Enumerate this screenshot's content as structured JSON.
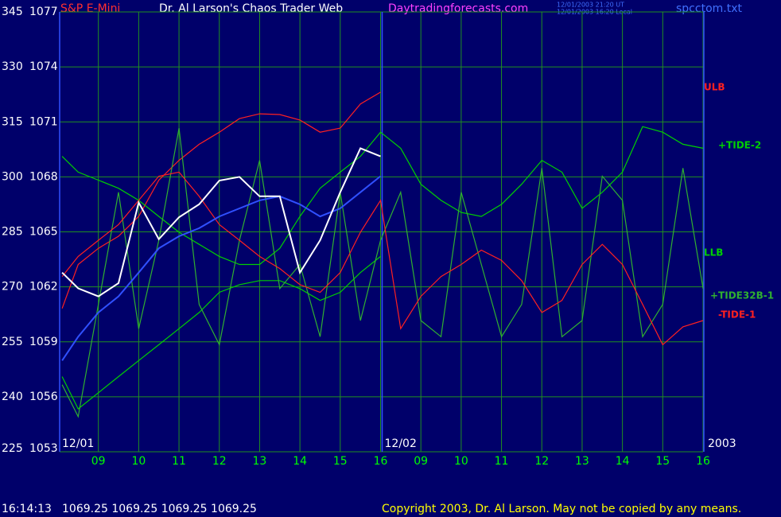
{
  "chart_data": {
    "type": "line",
    "header": {
      "symbol": "S&P E-Mini",
      "title": "Dr. Al Larson's Chaos Trader Web",
      "site": "Daytradingforecasts.com",
      "stamp_ut": "12/01/2003 21:20 UT",
      "stamp_local": "12/01/2003 16:20 Local",
      "file": "spcctom.txt"
    },
    "footer": {
      "time": "16:14:13",
      "quote": "1069.25 1069.25 1069.25 1069.25",
      "copyright": "Copyright 2003, Dr. Al Larson. May not be copied by any means."
    },
    "day_labels": [
      {
        "x": 0,
        "label": "12/01"
      },
      {
        "x": 8,
        "label": "12/02"
      }
    ],
    "year_label": "2003",
    "x": [
      0.1,
      0.5,
      1,
      1.5,
      2,
      2.5,
      3,
      3.5,
      4,
      4.5,
      5,
      5.5,
      6,
      6.5,
      7,
      7.5,
      8,
      8.5,
      9,
      9.5,
      10,
      10.5,
      11,
      11.5,
      12,
      12.5,
      13,
      13.5,
      14,
      14.5,
      15,
      15.5,
      16
    ],
    "xlim": [
      0,
      16
    ],
    "xticks": [
      {
        "value": 1,
        "label": "09"
      },
      {
        "value": 2,
        "label": "10"
      },
      {
        "value": 3,
        "label": "11"
      },
      {
        "value": 4,
        "label": "12"
      },
      {
        "value": 5,
        "label": "13"
      },
      {
        "value": 6,
        "label": "14"
      },
      {
        "value": 7,
        "label": "15"
      },
      {
        "value": 8,
        "label": "16"
      },
      {
        "value": 9,
        "label": "09"
      },
      {
        "value": 10,
        "label": "10"
      },
      {
        "value": 11,
        "label": "11"
      },
      {
        "value": 12,
        "label": "12"
      },
      {
        "value": 13,
        "label": "13"
      },
      {
        "value": 14,
        "label": "14"
      },
      {
        "value": 15,
        "label": "15"
      },
      {
        "value": 16,
        "label": "16"
      }
    ],
    "ylim": [
      225,
      345
    ],
    "yticks": [
      225,
      240,
      255,
      270,
      285,
      300,
      315,
      330,
      345
    ],
    "y2lim": [
      1053,
      1077
    ],
    "y2ticks": [
      1053,
      1056,
      1059,
      1062,
      1065,
      1068,
      1071,
      1074,
      1077
    ],
    "grid": true,
    "series": [
      {
        "name": "ULB",
        "color": "#ff2020",
        "values": [
          264.1,
          276.1,
          280.5,
          283.8,
          289.2,
          299.1,
          304.5,
          308.9,
          312.2,
          315.9,
          317.2,
          317,
          315.5,
          312.2,
          313.3,
          319.9,
          323.1,
          null,
          null,
          null,
          null,
          null,
          null,
          null,
          null,
          null,
          null,
          null,
          null,
          null,
          null,
          null,
          null
        ]
      },
      {
        "name": "+TIDE-2",
        "color": "#00d000",
        "values": [
          305.6,
          301.3,
          299.1,
          296.9,
          293.6,
          289.2,
          284.9,
          281.6,
          278.3,
          276.1,
          276.1,
          280.5,
          289.2,
          296.9,
          301.3,
          305.6,
          312.2,
          307.8,
          298,
          293.6,
          290.3,
          289.2,
          292.5,
          298,
          304.5,
          301.3,
          291.4,
          295.8,
          301.3,
          313.7,
          312.2,
          308.9,
          307.8
        ]
      },
      {
        "name": "LLB",
        "color": "#00d000",
        "values": [
          245.5,
          236.7,
          241.1,
          245.5,
          249.9,
          254.2,
          258.6,
          263,
          268.5,
          270.6,
          271.7,
          271.7,
          269.5,
          266.3,
          268.5,
          273.9,
          278.3,
          null,
          null,
          null,
          null,
          null,
          null,
          null,
          null,
          null,
          null,
          null,
          null,
          null,
          null,
          null,
          null
        ]
      },
      {
        "name": "+TIDE32B-1",
        "color": "#30b030",
        "values": [
          243.3,
          234.6,
          265.2,
          295.8,
          258.6,
          282.7,
          313.3,
          265.2,
          254.2,
          282.7,
          304.5,
          269.5,
          276.1,
          256.4,
          295.8,
          260.8,
          282.7,
          295.8,
          260.8,
          256.4,
          295.8,
          276.1,
          256.4,
          265.2,
          302.4,
          256.4,
          260.8,
          300.2,
          293.6,
          256.4,
          265.2,
          302.4,
          269.5
        ]
      },
      {
        "name": "-TIDE-1",
        "color": "#ff2020",
        "values": [
          272.8,
          278.3,
          282.7,
          287,
          293.6,
          300.2,
          301.3,
          294.7,
          287,
          282.7,
          278.3,
          275,
          270.6,
          268.5,
          273.9,
          284.9,
          293.6,
          258.6,
          267.4,
          272.8,
          276.1,
          280,
          277.2,
          271.7,
          263,
          266.3,
          276.1,
          281.6,
          276.1,
          265.2,
          254.2,
          259.1,
          260.8
        ]
      },
      {
        "color": "#3050ff",
        "values": [
          249.9,
          256.4,
          263,
          267.4,
          273.9,
          280.5,
          283.8,
          286,
          289.2,
          291.4,
          293.6,
          294.7,
          292.5,
          289.2,
          291.4,
          295.8,
          300.2,
          null,
          null,
          null,
          null,
          null,
          null,
          null,
          null,
          null,
          null,
          null,
          null,
          null,
          null,
          null,
          null
        ]
      },
      {
        "color": "#ffffff",
        "values": [
          273.9,
          269.6,
          267.4,
          271,
          293,
          283,
          289,
          292.5,
          299,
          300,
          294.7,
          294.7,
          273.9,
          282.7,
          295.8,
          307.8,
          305.6,
          null,
          null,
          null,
          null,
          null,
          null,
          null,
          null,
          null,
          null,
          null,
          null,
          null,
          null,
          null,
          null
        ]
      }
    ]
  }
}
